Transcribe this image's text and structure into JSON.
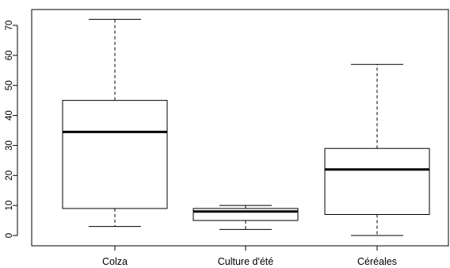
{
  "chart_data": {
    "type": "boxplot",
    "title": "",
    "xlabel": "",
    "ylabel": "",
    "categories": [
      "Colza",
      "Culture d'été",
      "Céréales"
    ],
    "yticks": [
      0,
      10,
      20,
      30,
      40,
      50,
      60,
      70
    ],
    "ylim": [
      -3,
      75
    ],
    "grid": false,
    "series": [
      {
        "category": "Colza",
        "min": 3,
        "q1": 9,
        "median": 34.5,
        "q3": 45,
        "max": 72
      },
      {
        "category": "Culture d'été",
        "min": 2,
        "q1": 5,
        "median": 8,
        "q3": 9,
        "max": 10
      },
      {
        "category": "Céréales",
        "min": 0,
        "q1": 7,
        "median": 22,
        "q3": 29,
        "max": 57
      }
    ]
  }
}
